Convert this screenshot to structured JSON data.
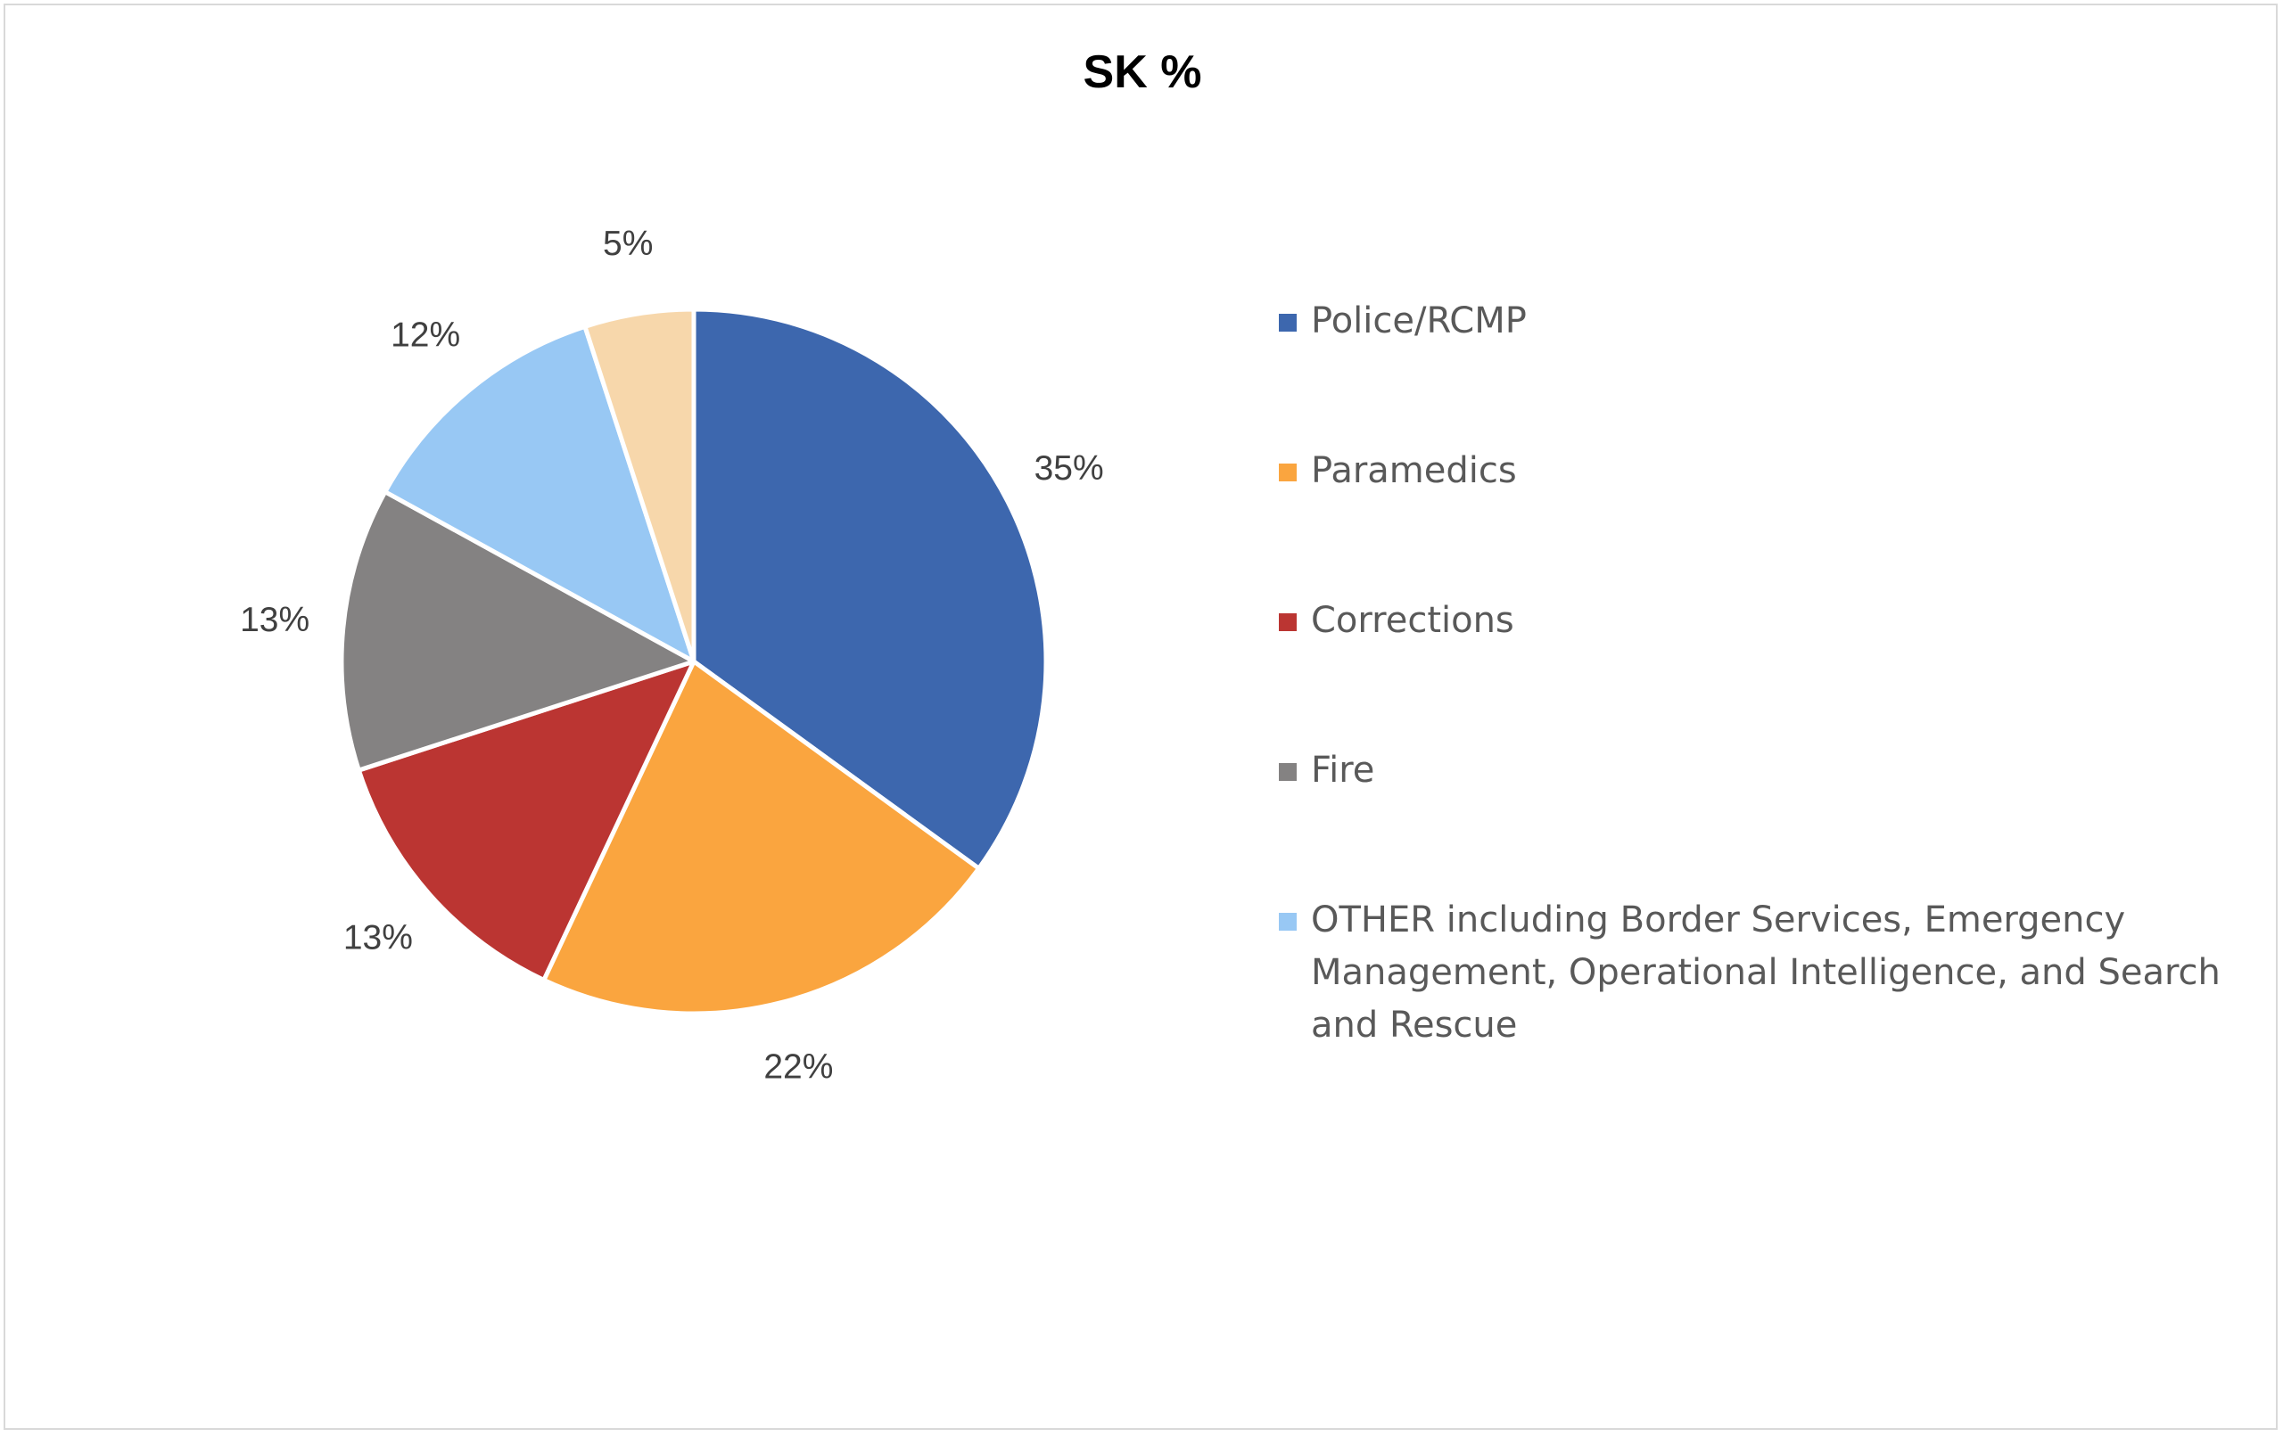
{
  "chart_data": {
    "type": "pie",
    "title": "SK %",
    "categories": [
      "Police/RCMP",
      "Paramedics",
      "Corrections",
      "Fire",
      "OTHER including Border Services, Emergency Management, Operational Intelligence, and Search and Rescue",
      ""
    ],
    "values": [
      35,
      22,
      13,
      13,
      12,
      5
    ],
    "data_labels": [
      "35%",
      "22%",
      "13%",
      "13%",
      "12%",
      "5%"
    ],
    "colors": [
      "#3d67ae",
      "#faa53f",
      "#bb3532",
      "#848282",
      "#98c8f4",
      "#f7d7ab"
    ],
    "legend_entries": [
      "Police/RCMP",
      "Paramedics",
      "Corrections",
      "Fire",
      "OTHER including Border Services, Emergency Management, Operational Intelligence, and Search and Rescue"
    ],
    "legend_position": "right",
    "start_angle": "12 o'clock",
    "direction": "clockwise"
  }
}
